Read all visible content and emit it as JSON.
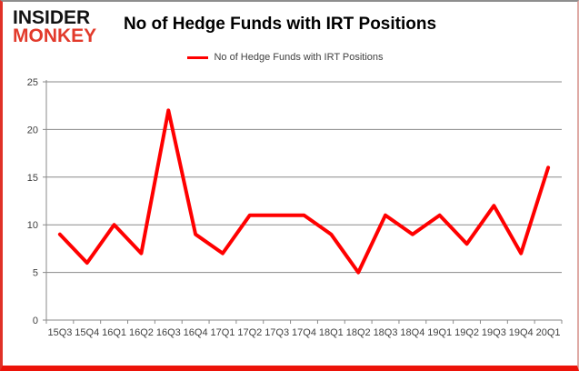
{
  "logo": {
    "line1": "INSIDER",
    "line2": "MONKEY"
  },
  "title": "No of Hedge Funds with IRT Positions",
  "legend": {
    "label": "No of Hedge Funds with IRT Positions"
  },
  "colors": {
    "line_red": "#ff0000",
    "logo_red": "#e23a2b",
    "axis_text": "#3f3f3f",
    "gridline": "#8a8a8a",
    "border_red": "#ec1309"
  },
  "chart_data": {
    "type": "line",
    "title": "No of Hedge Funds with IRT Positions",
    "categories": [
      "15Q3",
      "15Q4",
      "16Q1",
      "16Q2",
      "16Q3",
      "16Q4",
      "17Q1",
      "17Q2",
      "17Q3",
      "17Q4",
      "18Q1",
      "18Q2",
      "18Q3",
      "18Q4",
      "19Q1",
      "19Q2",
      "19Q3",
      "19Q4",
      "20Q1"
    ],
    "series": [
      {
        "name": "No of Hedge Funds with IRT Positions",
        "values": [
          9,
          6,
          10,
          7,
          22,
          9,
          7,
          11,
          11,
          11,
          9,
          5,
          11,
          9,
          11,
          8,
          12,
          7,
          16
        ]
      }
    ],
    "xlabel": "",
    "ylabel": "",
    "ylim": [
      0,
      25
    ],
    "yticks": [
      0,
      5,
      10,
      15,
      20,
      25
    ],
    "grid": true,
    "legend_position": "top"
  }
}
